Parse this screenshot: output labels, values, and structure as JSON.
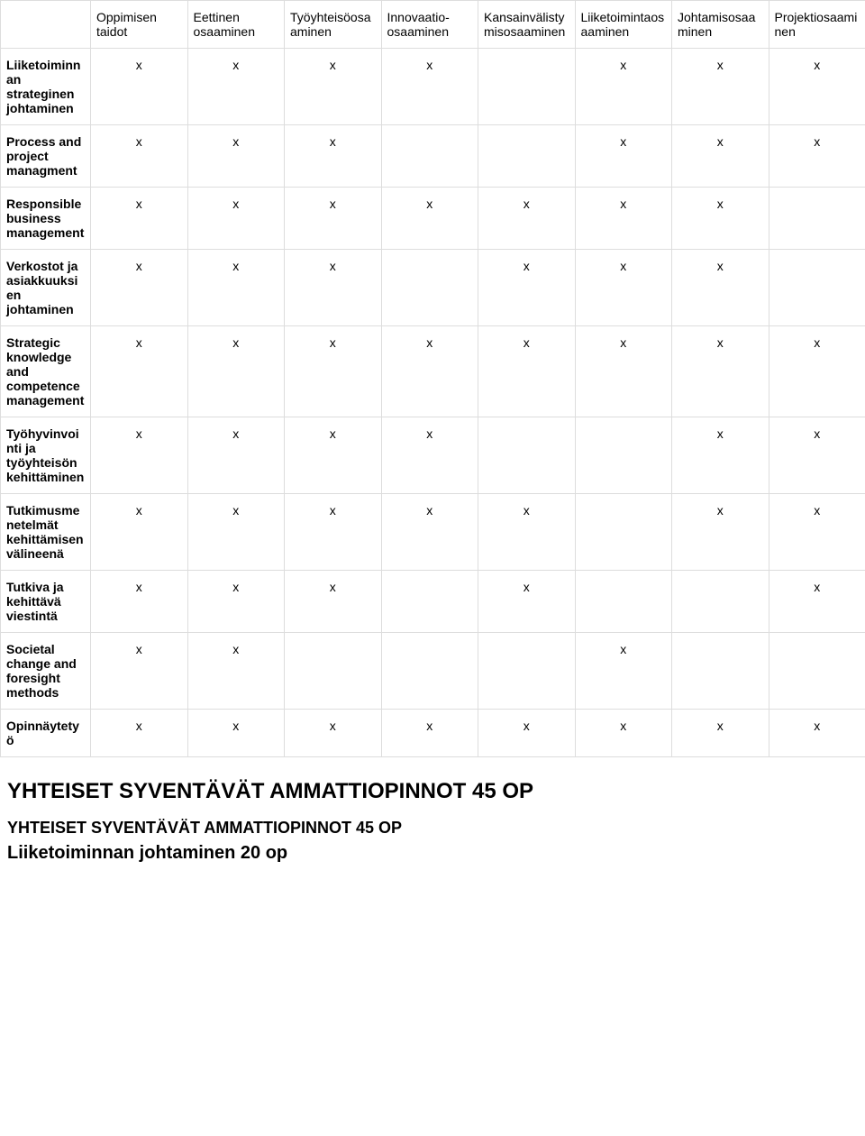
{
  "table": {
    "mark": "x",
    "columns": [
      "Oppimisen taidot",
      "Eettinen osaaminen",
      "Työyhteisöosaaminen",
      "Innovaatio-osaaminen",
      "Kansainvälistymisosaaminen",
      "Liiketoimintaosaaminen",
      "Johtamisosaaminen",
      "Projektiosaaminen"
    ],
    "rows": [
      {
        "label": "Liiketoiminnan strateginen johtaminen",
        "marks": [
          true,
          true,
          true,
          true,
          false,
          true,
          true,
          true
        ]
      },
      {
        "label": "Process and project managment",
        "marks": [
          true,
          true,
          true,
          false,
          false,
          true,
          true,
          true
        ]
      },
      {
        "label": "Responsible business management",
        "marks": [
          true,
          true,
          true,
          true,
          true,
          true,
          true,
          false
        ]
      },
      {
        "label": "Verkostot ja asiakkuuksien johtaminen",
        "marks": [
          true,
          true,
          true,
          false,
          true,
          true,
          true,
          false
        ]
      },
      {
        "label": "Strategic knowledge and competence management",
        "marks": [
          true,
          true,
          true,
          true,
          true,
          true,
          true,
          true
        ]
      },
      {
        "label": "Työhyvinvointi ja työyhteisön kehittäminen",
        "marks": [
          true,
          true,
          true,
          true,
          false,
          false,
          true,
          true
        ]
      },
      {
        "label": "Tutkimusmenetelmät kehittämisen välineenä",
        "marks": [
          true,
          true,
          true,
          true,
          true,
          false,
          true,
          true
        ]
      },
      {
        "label": "Tutkiva ja kehittävä viestintä",
        "marks": [
          true,
          true,
          true,
          false,
          true,
          false,
          false,
          true
        ]
      },
      {
        "label": "Societal change and foresight methods",
        "marks": [
          true,
          true,
          false,
          false,
          false,
          true,
          false,
          false
        ]
      },
      {
        "label": "Opinnäytetyö",
        "marks": [
          true,
          true,
          true,
          true,
          true,
          true,
          true,
          true
        ]
      }
    ],
    "border_color": "#dddddd",
    "header_fontsize": 14,
    "cell_fontsize": 14,
    "row_header_fontweight": 700,
    "col_header_fontweight": 400,
    "col_widths": {
      "first": 100,
      "rest": 107.5
    },
    "background": "#ffffff",
    "text_color": "#000000"
  },
  "headings": {
    "h1": "YHTEISET SYVENTÄVÄT AMMATTIOPINNOT 45 OP",
    "h2a": "YHTEISET SYVENTÄVÄT AMMATTIOPINNOT 45 OP",
    "h2b": "Liiketoiminnan johtaminen 20 op",
    "h1_fontsize": 24,
    "h2a_fontsize": 18,
    "h2b_fontsize": 20
  }
}
